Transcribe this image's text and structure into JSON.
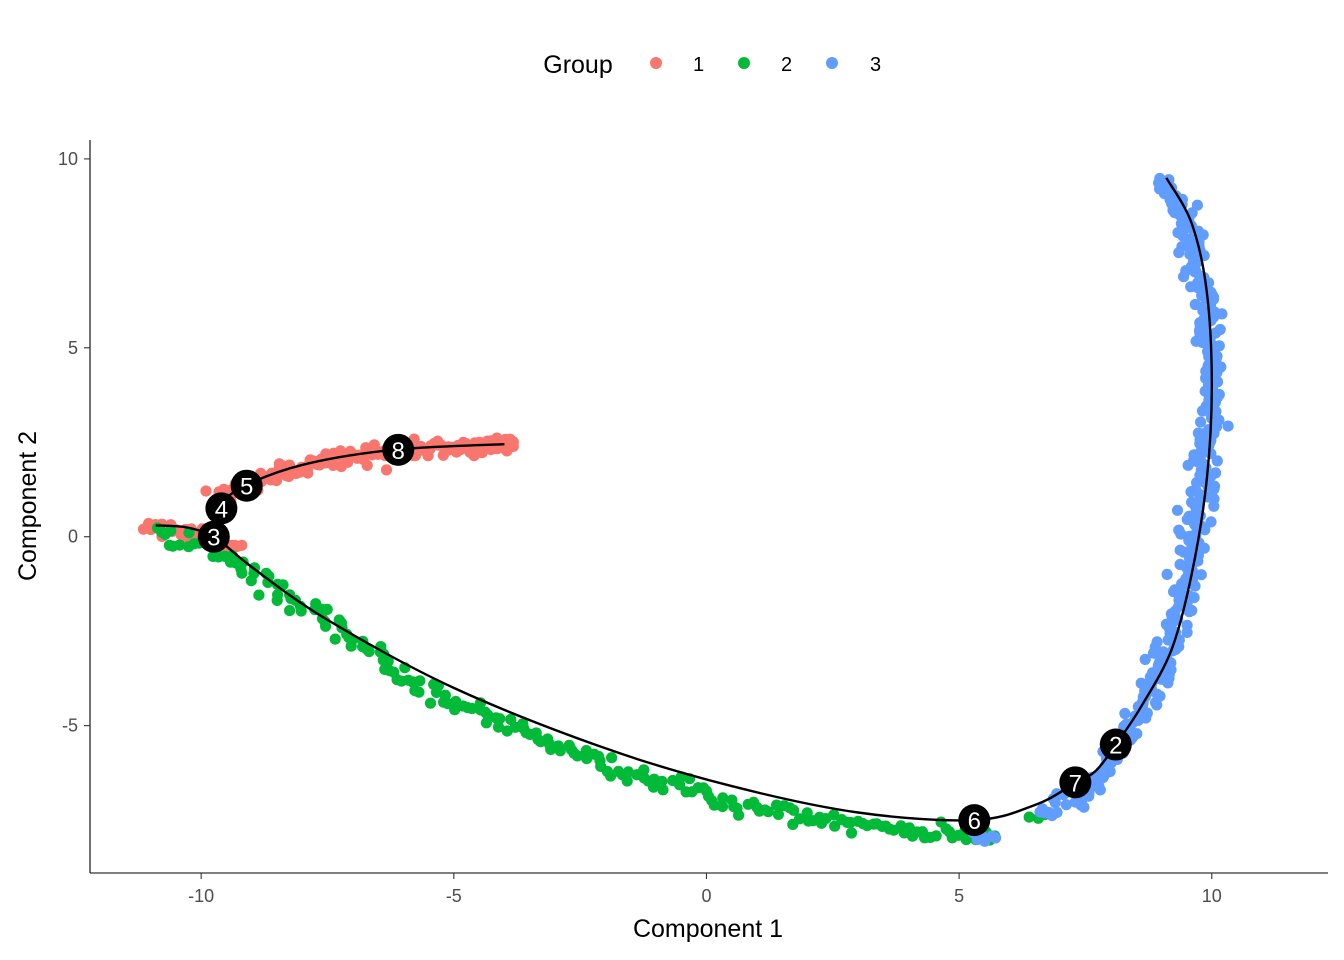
{
  "chart_data": {
    "type": "scatter",
    "title": "",
    "xlabel": "Component 1",
    "ylabel": "Component 2",
    "xlim": [
      -12.2,
      12.3
    ],
    "ylim": [
      -8.9,
      10.5
    ],
    "x_ticks": [
      -10,
      -5,
      0,
      5,
      10
    ],
    "y_ticks": [
      -5,
      0,
      5,
      10
    ],
    "x_tick_labels": [
      "-10",
      "-5",
      "0",
      "5",
      "10"
    ],
    "y_tick_labels": [
      "-5",
      "0",
      "5",
      "10"
    ],
    "grid": false,
    "legend": {
      "title": "Group",
      "position": "top",
      "entries": [
        {
          "label": "1",
          "color": "#F8766D"
        },
        {
          "label": "2",
          "color": "#00BA38"
        },
        {
          "label": "3",
          "color": "#619CFF"
        }
      ]
    },
    "trajectory": [
      {
        "path": [
          [
            -9.75,
            0.05
          ],
          [
            -9.0,
            -0.8
          ],
          [
            -7.5,
            -2.2
          ],
          [
            -5.0,
            -4.0
          ],
          [
            -2.0,
            -5.6
          ],
          [
            0.5,
            -6.6
          ],
          [
            3.0,
            -7.3
          ],
          [
            5.3,
            -7.5
          ],
          [
            6.5,
            -7.1
          ],
          [
            7.2,
            -6.6
          ],
          [
            7.7,
            -6.2
          ],
          [
            8.1,
            -5.5
          ],
          [
            8.6,
            -4.5
          ],
          [
            9.2,
            -3.0
          ],
          [
            9.6,
            -1.0
          ],
          [
            9.9,
            1.5
          ],
          [
            10.0,
            4.0
          ],
          [
            9.9,
            6.5
          ],
          [
            9.6,
            8.3
          ],
          [
            9.1,
            9.5
          ]
        ]
      },
      {
        "path": [
          [
            -9.75,
            0.05
          ],
          [
            -10.3,
            0.25
          ],
          [
            -10.9,
            0.3
          ]
        ]
      },
      {
        "path": [
          [
            -9.75,
            0.05
          ],
          [
            -9.7,
            0.7
          ],
          [
            -9.2,
            1.3
          ],
          [
            -8.0,
            1.9
          ],
          [
            -6.2,
            2.3
          ],
          [
            -4.0,
            2.45
          ]
        ]
      }
    ],
    "nodes": [
      {
        "label": "2",
        "x": 8.1,
        "y": -5.5
      },
      {
        "label": "3",
        "x": -9.75,
        "y": 0.0
      },
      {
        "label": "4",
        "x": -9.6,
        "y": 0.75
      },
      {
        "label": "5",
        "x": -9.1,
        "y": 1.35
      },
      {
        "label": "6",
        "x": 5.3,
        "y": -7.5
      },
      {
        "label": "7",
        "x": 7.3,
        "y": -6.5
      },
      {
        "label": "8",
        "x": -6.1,
        "y": 2.3
      }
    ],
    "series": [
      {
        "name": "1",
        "color": "#F8766D",
        "branches": [
          {
            "path": [
              [
                -9.7,
                0.95
              ],
              [
                -9.2,
                1.3
              ],
              [
                -8.5,
                1.7
              ],
              [
                -7.7,
                2.0
              ],
              [
                -6.2,
                2.28
              ],
              [
                -5.0,
                2.35
              ],
              [
                -4.2,
                2.45
              ],
              [
                -3.8,
                2.4
              ]
            ],
            "count": 170,
            "spread": 0.12
          },
          {
            "path": [
              [
                -11.1,
                0.35
              ],
              [
                -10.6,
                0.2
              ],
              [
                -10.1,
                0.05
              ],
              [
                -9.6,
                -0.1
              ],
              [
                -9.3,
                -0.35
              ]
            ],
            "count": 40,
            "spread": 0.1
          }
        ]
      },
      {
        "name": "2",
        "color": "#00BA38",
        "branches": [
          {
            "path": [
              [
                -10.9,
                0.1
              ],
              [
                -9.9,
                -0.2
              ],
              [
                -9.0,
                -1.0
              ],
              [
                -7.5,
                -2.3
              ],
              [
                -5.0,
                -4.4
              ],
              [
                -2.0,
                -6.0
              ],
              [
                0.5,
                -7.1
              ],
              [
                3.0,
                -7.65
              ],
              [
                4.5,
                -7.85
              ],
              [
                5.7,
                -8.0
              ]
            ],
            "count": 210,
            "spread": 0.12
          },
          {
            "path": [
              [
                6.4,
                -7.35
              ],
              [
                6.7,
                -7.3
              ]
            ],
            "count": 3,
            "spread": 0.06
          }
        ]
      },
      {
        "name": "3",
        "color": "#619CFF",
        "branches": [
          {
            "path": [
              [
                5.2,
                -7.8
              ],
              [
                5.7,
                -8.0
              ]
            ],
            "count": 8,
            "spread": 0.06
          },
          {
            "path": [
              [
                6.6,
                -7.3
              ],
              [
                7.2,
                -7.0
              ],
              [
                7.7,
                -6.5
              ],
              [
                8.1,
                -5.7
              ],
              [
                8.5,
                -4.8
              ],
              [
                9.0,
                -3.5
              ],
              [
                9.4,
                -2.0
              ],
              [
                9.6,
                -0.2
              ],
              [
                9.8,
                1.5
              ],
              [
                10.0,
                3.0
              ],
              [
                10.0,
                4.5
              ],
              [
                9.9,
                6.0
              ],
              [
                9.7,
                7.2
              ],
              [
                9.5,
                8.3
              ],
              [
                9.2,
                9.2
              ],
              [
                9.0,
                9.5
              ]
            ],
            "count": 420,
            "spread": 0.13
          }
        ]
      }
    ]
  }
}
